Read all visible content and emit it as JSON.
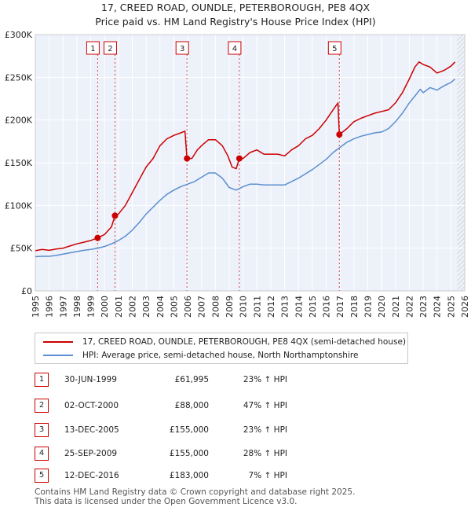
{
  "header": {
    "title_line1": "17, CREED ROAD, OUNDLE, PETERBOROUGH, PE8 4QX",
    "title_line2": "Price paid vs. HM Land Registry's House Price Index (HPI)"
  },
  "colors": {
    "price_line": "#cc0000",
    "hpi_line": "#5b8fd0",
    "grid": "#ffffff",
    "plot_bg": "#edf1fa",
    "future_hatch": "#bbbbbb"
  },
  "chart_data": {
    "type": "line",
    "title": "17, CREED ROAD, OUNDLE, PETERBOROUGH, PE8 4QX",
    "subtitle": "Price paid vs. HM Land Registry's House Price Index (HPI)",
    "xlabel": "",
    "ylabel": "",
    "xlim": [
      1995,
      2026
    ],
    "ylim": [
      0,
      300000
    ],
    "yticks": [
      0,
      50000,
      100000,
      150000,
      200000,
      250000,
      300000
    ],
    "ytick_labels": [
      "£0",
      "£50K",
      "£100K",
      "£150K",
      "£200K",
      "£250K",
      "£300K"
    ],
    "xticks": [
      1995,
      1996,
      1997,
      1998,
      1999,
      2000,
      2001,
      2002,
      2003,
      2004,
      2005,
      2006,
      2007,
      2008,
      2009,
      2010,
      2011,
      2012,
      2013,
      2014,
      2015,
      2016,
      2017,
      2018,
      2019,
      2020,
      2021,
      2022,
      2023,
      2024,
      2025,
      2026
    ],
    "legend_position": "bottom",
    "series": [
      {
        "name": "17, CREED ROAD, OUNDLE, PETERBOROUGH, PE8 4QX (semi-detached house)",
        "color": "#cc0000",
        "points": [
          [
            1995.0,
            47000
          ],
          [
            1995.5,
            48500
          ],
          [
            1996.0,
            47500
          ],
          [
            1996.5,
            49000
          ],
          [
            1997.0,
            50000
          ],
          [
            1997.5,
            52500
          ],
          [
            1998.0,
            55000
          ],
          [
            1998.5,
            57000
          ],
          [
            1999.0,
            59000
          ],
          [
            1999.5,
            61995
          ],
          [
            2000.0,
            66000
          ],
          [
            2000.5,
            75000
          ],
          [
            2000.75,
            88000
          ],
          [
            2001.0,
            90000
          ],
          [
            2001.5,
            100000
          ],
          [
            2002.0,
            115000
          ],
          [
            2002.5,
            130000
          ],
          [
            2003.0,
            145000
          ],
          [
            2003.5,
            155000
          ],
          [
            2004.0,
            170000
          ],
          [
            2004.5,
            178000
          ],
          [
            2005.0,
            182000
          ],
          [
            2005.5,
            185000
          ],
          [
            2005.8,
            187000
          ],
          [
            2005.95,
            155000
          ],
          [
            2006.3,
            155000
          ],
          [
            2006.7,
            165000
          ],
          [
            2007.0,
            170000
          ],
          [
            2007.5,
            177000
          ],
          [
            2008.0,
            177000
          ],
          [
            2008.5,
            170000
          ],
          [
            2008.9,
            158000
          ],
          [
            2009.2,
            145000
          ],
          [
            2009.5,
            143000
          ],
          [
            2009.73,
            155000
          ],
          [
            2010.0,
            155000
          ],
          [
            2010.5,
            162000
          ],
          [
            2011.0,
            165000
          ],
          [
            2011.5,
            160000
          ],
          [
            2012.0,
            160000
          ],
          [
            2012.5,
            160000
          ],
          [
            2013.0,
            158000
          ],
          [
            2013.5,
            165000
          ],
          [
            2014.0,
            170000
          ],
          [
            2014.5,
            178000
          ],
          [
            2015.0,
            182000
          ],
          [
            2015.5,
            190000
          ],
          [
            2016.0,
            200000
          ],
          [
            2016.5,
            212000
          ],
          [
            2016.85,
            220000
          ],
          [
            2016.95,
            183000
          ],
          [
            2017.5,
            190000
          ],
          [
            2018.0,
            198000
          ],
          [
            2018.5,
            202000
          ],
          [
            2019.0,
            205000
          ],
          [
            2019.5,
            208000
          ],
          [
            2020.0,
            210000
          ],
          [
            2020.5,
            212000
          ],
          [
            2021.0,
            220000
          ],
          [
            2021.5,
            232000
          ],
          [
            2022.0,
            248000
          ],
          [
            2022.4,
            262000
          ],
          [
            2022.7,
            268000
          ],
          [
            2023.0,
            265000
          ],
          [
            2023.5,
            262000
          ],
          [
            2024.0,
            255000
          ],
          [
            2024.5,
            258000
          ],
          [
            2025.0,
            263000
          ],
          [
            2025.3,
            268000
          ]
        ]
      },
      {
        "name": "HPI: Average price, semi-detached house, North Northamptonshire",
        "color": "#5b8fd0",
        "points": [
          [
            1995.0,
            40000
          ],
          [
            1995.5,
            40500
          ],
          [
            1996.0,
            40500
          ],
          [
            1996.5,
            41500
          ],
          [
            1997.0,
            43000
          ],
          [
            1997.5,
            44500
          ],
          [
            1998.0,
            46000
          ],
          [
            1998.5,
            47500
          ],
          [
            1999.0,
            48500
          ],
          [
            1999.5,
            50000
          ],
          [
            2000.0,
            52000
          ],
          [
            2000.5,
            55000
          ],
          [
            2001.0,
            59000
          ],
          [
            2001.5,
            64000
          ],
          [
            2002.0,
            71000
          ],
          [
            2002.5,
            80000
          ],
          [
            2003.0,
            90000
          ],
          [
            2003.5,
            98000
          ],
          [
            2004.0,
            106000
          ],
          [
            2004.5,
            113000
          ],
          [
            2005.0,
            118000
          ],
          [
            2005.5,
            122000
          ],
          [
            2006.0,
            125000
          ],
          [
            2006.5,
            128000
          ],
          [
            2007.0,
            133000
          ],
          [
            2007.5,
            138000
          ],
          [
            2008.0,
            138000
          ],
          [
            2008.5,
            132000
          ],
          [
            2009.0,
            121000
          ],
          [
            2009.5,
            118000
          ],
          [
            2010.0,
            122000
          ],
          [
            2010.5,
            125000
          ],
          [
            2011.0,
            125000
          ],
          [
            2011.5,
            124000
          ],
          [
            2012.0,
            124000
          ],
          [
            2012.5,
            124000
          ],
          [
            2013.0,
            124000
          ],
          [
            2013.5,
            128000
          ],
          [
            2014.0,
            132000
          ],
          [
            2014.5,
            137000
          ],
          [
            2015.0,
            142000
          ],
          [
            2015.5,
            148000
          ],
          [
            2016.0,
            154000
          ],
          [
            2016.5,
            162000
          ],
          [
            2017.0,
            168000
          ],
          [
            2017.5,
            174000
          ],
          [
            2018.0,
            178000
          ],
          [
            2018.5,
            181000
          ],
          [
            2019.0,
            183000
          ],
          [
            2019.5,
            185000
          ],
          [
            2020.0,
            186000
          ],
          [
            2020.5,
            190000
          ],
          [
            2021.0,
            198000
          ],
          [
            2021.5,
            208000
          ],
          [
            2022.0,
            220000
          ],
          [
            2022.5,
            230000
          ],
          [
            2022.8,
            236000
          ],
          [
            2023.0,
            232000
          ],
          [
            2023.5,
            238000
          ],
          [
            2024.0,
            235000
          ],
          [
            2024.5,
            240000
          ],
          [
            2025.0,
            244000
          ],
          [
            2025.3,
            248000
          ]
        ]
      }
    ],
    "sales": [
      {
        "num": "1",
        "date": "30-JUN-1999",
        "price": "£61,995",
        "hpi": "23% ↑ HPI",
        "x": 1999.5,
        "y": 61995
      },
      {
        "num": "2",
        "date": "02-OCT-2000",
        "price": "£88,000",
        "hpi": "47% ↑ HPI",
        "x": 2000.75,
        "y": 88000
      },
      {
        "num": "3",
        "date": "13-DEC-2005",
        "price": "£155,000",
        "hpi": "23% ↑ HPI",
        "x": 2005.95,
        "y": 155000
      },
      {
        "num": "4",
        "date": "25-SEP-2009",
        "price": "£155,000",
        "hpi": "28% ↑ HPI",
        "x": 2009.73,
        "y": 155000
      },
      {
        "num": "5",
        "date": "12-DEC-2016",
        "price": "£183,000",
        "hpi": "7% ↑ HPI",
        "x": 2016.95,
        "y": 183000
      }
    ],
    "future_start": 2025.45
  },
  "legend": {
    "price_label": "17, CREED ROAD, OUNDLE, PETERBOROUGH, PE8 4QX (semi-detached house)",
    "hpi_label": "HPI: Average price, semi-detached house, North Northamptonshire"
  },
  "footer": {
    "line1": "Contains HM Land Registry data © Crown copyright and database right 2025.",
    "line2": "This data is licensed under the Open Government Licence v3.0."
  }
}
